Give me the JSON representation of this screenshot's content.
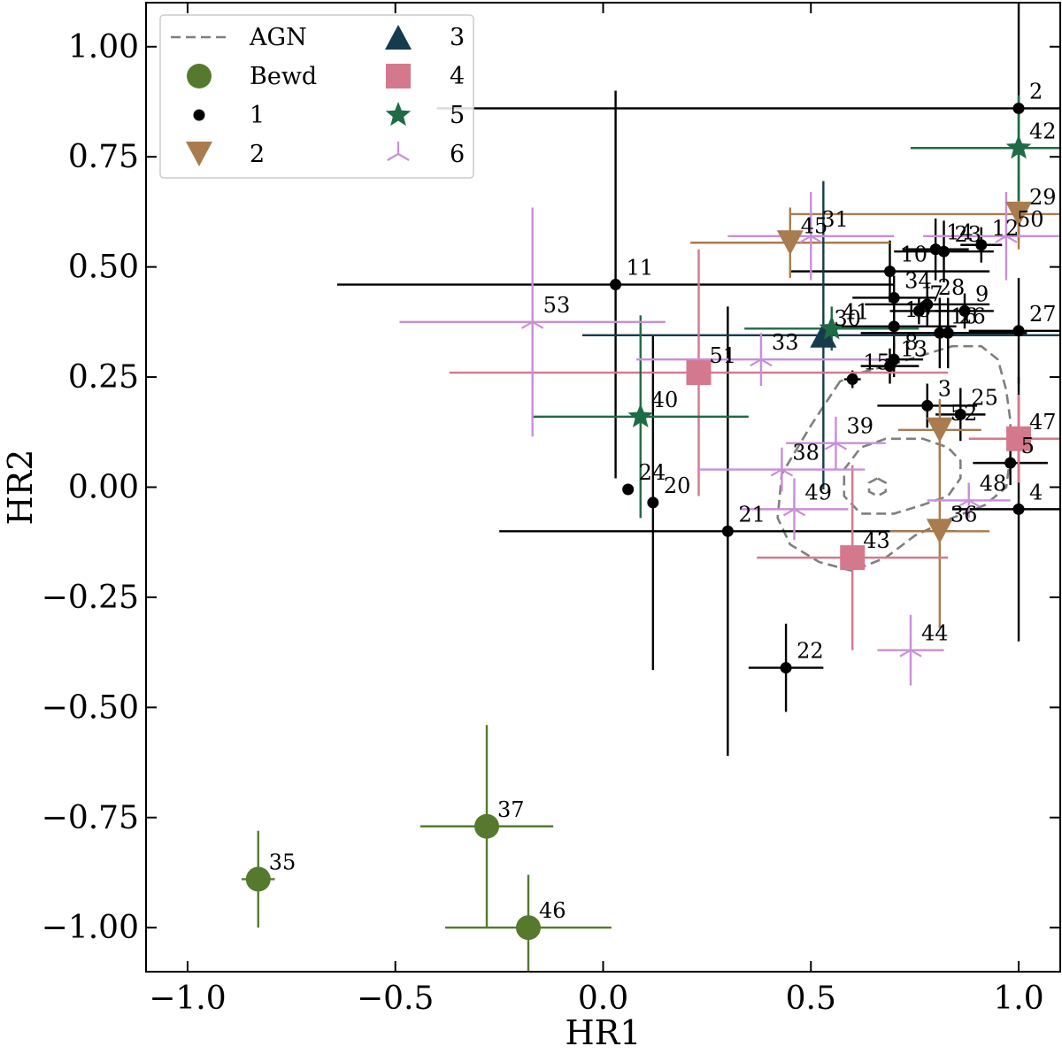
{
  "chart_data": {
    "type": "scatter",
    "xlabel": "HR1",
    "ylabel": "HR2",
    "xlim": [
      -1.1,
      1.1
    ],
    "ylim": [
      -1.1,
      1.1
    ],
    "x_ticks": [
      -1.0,
      -0.5,
      0.0,
      0.5,
      1.0
    ],
    "x_tick_labels": [
      "−1.0",
      "−0.5",
      "0.0",
      "0.5",
      "1.0"
    ],
    "y_ticks": [
      1.0,
      0.75,
      0.5,
      0.25,
      0.0,
      -0.25,
      -0.5,
      -0.75,
      -1.0
    ],
    "y_tick_labels": [
      "1.00",
      "0.75",
      "0.50",
      "0.25",
      "0.00",
      "−0.25",
      "−0.50",
      "−0.75",
      "−1.00"
    ],
    "legend": {
      "position": "top-left",
      "entries": [
        {
          "label": "AGN",
          "marker": "dashed-line",
          "color": "#7f7f7f"
        },
        {
          "label": "Bewd",
          "marker": "circle-large",
          "color": "#557a2e"
        },
        {
          "label": "1",
          "marker": "dot",
          "color": "#000000"
        },
        {
          "label": "2",
          "marker": "triangle-down",
          "color": "#a87c4f"
        },
        {
          "label": "3",
          "marker": "triangle-up",
          "color": "#163b4d"
        },
        {
          "label": "4",
          "marker": "square",
          "color": "#d4788e"
        },
        {
          "label": "5",
          "marker": "star",
          "color": "#1f6b45"
        },
        {
          "label": "6",
          "marker": "tri-down",
          "color": "#c98fd8"
        }
      ]
    },
    "agn_contours": {
      "label": "AGN",
      "color": "#7f7f7f",
      "outer": [
        [
          0.57,
          0.24
        ],
        [
          0.5,
          0.14
        ],
        [
          0.43,
          0.03
        ],
        [
          0.42,
          -0.07
        ],
        [
          0.45,
          -0.13
        ],
        [
          0.52,
          -0.17
        ],
        [
          0.6,
          -0.19
        ],
        [
          0.68,
          -0.16
        ],
        [
          0.75,
          -0.11
        ],
        [
          0.84,
          -0.07
        ],
        [
          0.92,
          -0.04
        ],
        [
          0.97,
          0.0
        ],
        [
          0.98,
          0.07
        ],
        [
          0.98,
          0.15
        ],
        [
          0.97,
          0.22
        ],
        [
          0.95,
          0.29
        ],
        [
          0.91,
          0.32
        ],
        [
          0.84,
          0.32
        ],
        [
          0.77,
          0.3
        ],
        [
          0.7,
          0.28
        ],
        [
          0.62,
          0.26
        ],
        [
          0.57,
          0.24
        ]
      ],
      "inner": [
        [
          0.68,
          0.11
        ],
        [
          0.62,
          0.09
        ],
        [
          0.58,
          0.04
        ],
        [
          0.58,
          -0.02
        ],
        [
          0.62,
          -0.06
        ],
        [
          0.7,
          -0.06
        ],
        [
          0.77,
          -0.04
        ],
        [
          0.83,
          -0.02
        ],
        [
          0.86,
          0.02
        ],
        [
          0.86,
          0.06
        ],
        [
          0.83,
          0.09
        ],
        [
          0.77,
          0.11
        ],
        [
          0.72,
          0.11
        ],
        [
          0.68,
          0.11
        ]
      ],
      "core": [
        [
          0.66,
          0.02
        ],
        [
          0.64,
          0.01
        ],
        [
          0.64,
          -0.01
        ],
        [
          0.66,
          -0.02
        ],
        [
          0.68,
          -0.01
        ],
        [
          0.68,
          0.01
        ],
        [
          0.66,
          0.02
        ]
      ]
    },
    "series": [
      {
        "name": "Bewd",
        "marker": "circle-large",
        "color": "#557a2e",
        "points": [
          {
            "id": "35",
            "x": -0.83,
            "y": -0.89,
            "xerr": [
              0.04,
              0.04
            ],
            "yerr": [
              0.11,
              0.11
            ]
          },
          {
            "id": "37",
            "x": -0.28,
            "y": -0.77,
            "xerr": [
              0.16,
              0.16
            ],
            "yerr": [
              0.23,
              0.23
            ]
          },
          {
            "id": "46",
            "x": -0.18,
            "y": -1.0,
            "xerr": [
              0.2,
              0.2
            ],
            "yerr": [
              0.12,
              0.12
            ]
          }
        ]
      },
      {
        "name": "1",
        "marker": "dot",
        "color": "#000000",
        "points": [
          {
            "id": "2",
            "x": 1.0,
            "y": 0.86,
            "xerr": [
              1.4,
              0.4
            ],
            "yerr": [
              0.3,
              0.3
            ]
          },
          {
            "id": "11",
            "x": 0.03,
            "y": 0.46,
            "xerr": [
              0.67,
              0.67
            ],
            "yerr": [
              0.44,
              0.44
            ]
          },
          {
            "id": "10",
            "x": 0.69,
            "y": 0.49,
            "xerr": [
              0.24,
              0.24
            ],
            "yerr": [
              0.07,
              0.07
            ]
          },
          {
            "id": "14",
            "x": 0.8,
            "y": 0.54,
            "xerr": [
              0.08,
              0.08
            ],
            "yerr": [
              0.07,
              0.07
            ]
          },
          {
            "id": "23",
            "x": 0.82,
            "y": 0.535,
            "xerr": [
              0.12,
              0.12
            ],
            "yerr": [
              0.07,
              0.07
            ]
          },
          {
            "id": "12",
            "x": 0.91,
            "y": 0.55,
            "xerr": [
              0.05,
              0.05
            ],
            "yerr": [
              0.04,
              0.04
            ]
          },
          {
            "id": "34",
            "x": 0.7,
            "y": 0.43,
            "xerr": [
              0.1,
              0.1
            ],
            "yerr": [
              0.05,
              0.05
            ]
          },
          {
            "id": "7",
            "x": 0.76,
            "y": 0.4,
            "xerr": [
              0.07,
              0.07
            ],
            "yerr": [
              0.03,
              0.03
            ]
          },
          {
            "id": "28",
            "x": 0.78,
            "y": 0.415,
            "xerr": [
              0.15,
              0.15
            ],
            "yerr": [
              0.05,
              0.05
            ]
          },
          {
            "id": "9",
            "x": 0.87,
            "y": 0.4,
            "xerr": [
              0.07,
              0.07
            ],
            "yerr": [
              0.04,
              0.04
            ]
          },
          {
            "id": "16",
            "x": 0.81,
            "y": 0.35,
            "xerr": [
              0.19,
              0.19
            ],
            "yerr": [
              0.08,
              0.08
            ]
          },
          {
            "id": "26",
            "x": 0.83,
            "y": 0.35,
            "xerr": [
              0.19,
              0.19
            ],
            "yerr": [
              0.08,
              0.08
            ]
          },
          {
            "id": "27",
            "x": 1.0,
            "y": 0.355,
            "xerr": [
              0.12,
              0.12
            ],
            "yerr": [
              0.12,
              0.12
            ]
          },
          {
            "id": "19",
            "x": 0.7,
            "y": 0.365,
            "xerr": [
              0.15,
              0.15
            ],
            "yerr": [
              0.05,
              0.05
            ]
          },
          {
            "id": "8",
            "x": 0.7,
            "y": 0.29,
            "xerr": [
              0.07,
              0.07
            ],
            "yerr": [
              0.04,
              0.04
            ]
          },
          {
            "id": "13",
            "x": 0.69,
            "y": 0.275,
            "xerr": [
              0.07,
              0.07
            ],
            "yerr": [
              0.04,
              0.04
            ]
          },
          {
            "id": "15",
            "x": 0.6,
            "y": 0.245,
            "xerr": [
              0.02,
              0.02
            ],
            "yerr": [
              0.02,
              0.02
            ]
          },
          {
            "id": "3",
            "x": 0.78,
            "y": 0.185,
            "xerr": [
              0.12,
              0.12
            ],
            "yerr": [
              0.05,
              0.05
            ]
          },
          {
            "id": "25",
            "x": 0.86,
            "y": 0.165,
            "xerr": [
              0.06,
              0.06
            ],
            "yerr": [
              0.06,
              0.06
            ]
          },
          {
            "id": "5",
            "x": 0.98,
            "y": 0.055,
            "xerr": [
              0.09,
              0.09
            ],
            "yerr": [
              0.05,
              0.05
            ]
          },
          {
            "id": "4",
            "x": 1.0,
            "y": -0.05,
            "xerr": [
              0.16,
              0.16
            ],
            "yerr": [
              0.3,
              0.3
            ]
          },
          {
            "id": "24",
            "x": 0.06,
            "y": -0.005,
            "xerr": [
              0.01,
              0.01
            ],
            "yerr": [
              0.01,
              0.01
            ]
          },
          {
            "id": "20",
            "x": 0.12,
            "y": -0.035,
            "xerr": [
              0.01,
              0.01
            ],
            "yerr": [
              0.38,
              0.38
            ]
          },
          {
            "id": "21",
            "x": 0.3,
            "y": -0.1,
            "xerr": [
              0.55,
              0.55
            ],
            "yerr": [
              0.51,
              0.51
            ]
          },
          {
            "id": "22",
            "x": 0.44,
            "y": -0.41,
            "xerr": [
              0.09,
              0.09
            ],
            "yerr": [
              0.1,
              0.1
            ]
          }
        ]
      },
      {
        "name": "2",
        "marker": "triangle-down",
        "color": "#a87c4f",
        "points": [
          {
            "id": "45",
            "x": 0.45,
            "y": 0.555,
            "xerr": [
              0.24,
              0.24
            ],
            "yerr": [
              0.08,
              0.08
            ]
          },
          {
            "id": "29",
            "x": 1.0,
            "y": 0.62,
            "xerr": [
              0.55,
              0.55
            ],
            "yerr": [
              0.08,
              0.08
            ]
          },
          {
            "id": "52",
            "x": 0.81,
            "y": 0.13,
            "xerr": [
              0.1,
              0.1
            ],
            "yerr": [
              0.07,
              0.07
            ]
          },
          {
            "id": "36",
            "x": 0.81,
            "y": -0.1,
            "xerr": [
              0.12,
              0.12
            ],
            "yerr": [
              0.22,
              0.22
            ]
          }
        ]
      },
      {
        "name": "3",
        "marker": "triangle-up",
        "color": "#163b4d",
        "points": [
          {
            "id": "30",
            "x": 0.53,
            "y": 0.345,
            "xerr": [
              0.58,
              0.58
            ],
            "yerr": [
              0.35,
              0.35
            ]
          }
        ]
      },
      {
        "name": "4",
        "marker": "square",
        "color": "#d4788e",
        "points": [
          {
            "id": "51",
            "x": 0.23,
            "y": 0.26,
            "xerr": [
              0.6,
              0.6
            ],
            "yerr": [
              0.28,
              0.28
            ]
          },
          {
            "id": "47",
            "x": 1.0,
            "y": 0.11,
            "xerr": [
              0.12,
              0.12
            ],
            "yerr": [
              0.1,
              0.1
            ]
          },
          {
            "id": "43",
            "x": 0.6,
            "y": -0.16,
            "xerr": [
              0.23,
              0.23
            ],
            "yerr": [
              0.21,
              0.21
            ]
          }
        ]
      },
      {
        "name": "5",
        "marker": "star",
        "color": "#1f6b45",
        "points": [
          {
            "id": "42",
            "x": 1.0,
            "y": 0.77,
            "xerr": [
              0.26,
              0.26
            ],
            "yerr": [
              0.12,
              0.12
            ]
          },
          {
            "id": "41",
            "x": 0.55,
            "y": 0.36,
            "xerr": [
              0.21,
              0.21
            ],
            "yerr": [
              0.05,
              0.05
            ]
          },
          {
            "id": "40",
            "x": 0.09,
            "y": 0.16,
            "xerr": [
              0.26,
              0.26
            ],
            "yerr": [
              0.23,
              0.23
            ]
          }
        ]
      },
      {
        "name": "6",
        "marker": "tri-down",
        "color": "#c98fd8",
        "points": [
          {
            "id": "31",
            "x": 0.5,
            "y": 0.57,
            "xerr": [
              0.2,
              0.2
            ],
            "yerr": [
              0.1,
              0.1
            ]
          },
          {
            "id": "53",
            "x": -0.17,
            "y": 0.375,
            "xerr": [
              0.32,
              0.32
            ],
            "yerr": [
              0.26,
              0.26
            ]
          },
          {
            "id": "33",
            "x": 0.38,
            "y": 0.29,
            "xerr": [
              0.3,
              0.3
            ],
            "yerr": [
              0.06,
              0.06
            ]
          },
          {
            "id": "39",
            "x": 0.56,
            "y": 0.1,
            "xerr": [
              0.12,
              0.12
            ],
            "yerr": [
              0.06,
              0.06
            ]
          },
          {
            "id": "38",
            "x": 0.43,
            "y": 0.04,
            "xerr": [
              0.2,
              0.2
            ],
            "yerr": [
              0.05,
              0.05
            ]
          },
          {
            "id": "49",
            "x": 0.46,
            "y": -0.05,
            "xerr": [
              0.13,
              0.13
            ],
            "yerr": [
              0.07,
              0.07
            ]
          },
          {
            "id": "48",
            "x": 0.88,
            "y": -0.03,
            "xerr": [
              0.1,
              0.1
            ],
            "yerr": [
              0.04,
              0.04
            ]
          },
          {
            "id": "44",
            "x": 0.74,
            "y": -0.37,
            "xerr": [
              0.08,
              0.08
            ],
            "yerr": [
              0.08,
              0.08
            ]
          },
          {
            "id": "50",
            "x": 0.97,
            "y": 0.57,
            "xerr": [
              0.2,
              0.2
            ],
            "yerr": [
              0.1,
              0.1
            ]
          }
        ]
      }
    ]
  }
}
